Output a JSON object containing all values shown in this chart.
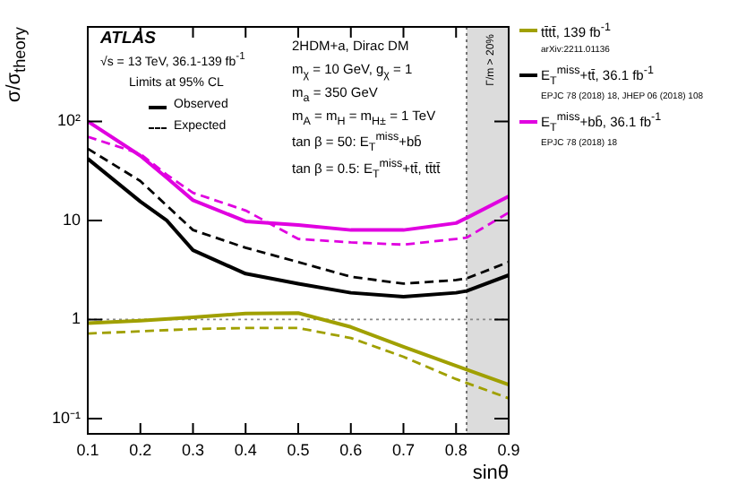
{
  "chart_data": {
    "type": "line",
    "xlabel": "sinθ",
    "ylabel": "σ/σ$_{theory}$",
    "log": "y",
    "grid": false,
    "legend": "right",
    "xlim": [
      0.1,
      0.9
    ],
    "xticks": [
      0.1,
      0.2,
      0.3,
      0.4,
      0.5,
      0.6,
      0.7,
      0.8,
      0.9
    ],
    "ylim": [
      0.07,
      900
    ],
    "yticks": [
      {
        "value": 0.1,
        "label": "10⁻¹"
      },
      1,
      10,
      {
        "value": 100,
        "label": "10²"
      }
    ],
    "series": [
      {
        "name": "tt̄tt̄, 139 fb$^{-1}$",
        "color": "#a0a000",
        "line_style": "solid",
        "x": [
          0.1,
          0.2,
          0.3,
          0.4,
          0.5,
          0.6,
          0.7,
          0.8,
          0.9
        ],
        "values": [
          0.92,
          0.97,
          1.05,
          1.15,
          1.16,
          0.84,
          0.53,
          0.34,
          0.22
        ]
      },
      {
        "color": "#a0a000",
        "line_style": "dashed",
        "x": [
          0.1,
          0.2,
          0.3,
          0.4,
          0.5,
          0.6,
          0.7,
          0.8,
          0.9
        ],
        "values": [
          0.72,
          0.76,
          0.8,
          0.82,
          0.82,
          0.65,
          0.42,
          0.25,
          0.16
        ]
      },
      {
        "name": "E$_{T}$$^{miss}$+tt̄, 36.1 fb$^{-1}$",
        "color": "#000000",
        "line_style": "solid",
        "x": [
          0.1,
          0.2,
          0.25,
          0.3,
          0.4,
          0.5,
          0.6,
          0.7,
          0.8,
          0.82,
          0.9
        ],
        "values": [
          42,
          15.5,
          10,
          5,
          2.9,
          2.3,
          1.86,
          1.7,
          1.86,
          1.94,
          2.8
        ]
      },
      {
        "color": "#000000",
        "line_style": "dashed",
        "x": [
          0.1,
          0.2,
          0.3,
          0.4,
          0.5,
          0.6,
          0.7,
          0.8,
          0.82,
          0.9
        ],
        "values": [
          53,
          25,
          8,
          5.3,
          3.8,
          2.7,
          2.3,
          2.5,
          2.6,
          3.8
        ]
      },
      {
        "name": "E$_{T}$$^{miss}$+bb̄, 36.1 fb$^{-1}$",
        "color": "#e000e0",
        "line_style": "solid",
        "x": [
          0.1,
          0.2,
          0.25,
          0.3,
          0.4,
          0.5,
          0.6,
          0.7,
          0.8,
          0.82,
          0.9
        ],
        "values": [
          100,
          45,
          27,
          16,
          9.8,
          9,
          8,
          8,
          9.4,
          10.6,
          17.5
        ]
      },
      {
        "color": "#e000e0",
        "line_style": "dashed",
        "x": [
          0.1,
          0.2,
          0.25,
          0.3,
          0.4,
          0.5,
          0.6,
          0.7,
          0.8,
          0.82,
          0.9
        ],
        "values": [
          70,
          47,
          29,
          19,
          12.6,
          6.5,
          6,
          5.7,
          6.5,
          6.7,
          12
        ]
      }
    ],
    "ref_lines": [
      {
        "axis": "y",
        "value": 1,
        "line_style": "dotted",
        "color": "#888888"
      },
      {
        "axis": "x",
        "value": 0.82,
        "line_style": "dotted",
        "color": "#555555"
      }
    ],
    "bands": [
      {
        "axis": "x",
        "from": 0.82,
        "to": 0.9,
        "label": "Γ/m > 20%",
        "color": "#dcdcdc"
      }
    ],
    "annotations": [
      "ATLAS",
      "√s = 13 TeV, 36.1-139 fb$^{-1}$",
      "Limits at 95% CL",
      "Observed",
      "Expected",
      "2HDM+a, Dirac DM",
      "m$_{χ}$ = 10 GeV, g$_{χ}$ = 1",
      "m$_{a}$ = 350 GeV",
      "m$_{A}$ = m$_{H}$ = m$_{H±}$ = 1 TeV",
      "tan β = 50: E$_{T}$$^{miss}$+bb̄",
      "tan β = 0.5: E$_{T}$$^{miss}$+tt̄, tt̄tt̄",
      "arXiv:2211.01136",
      "EPJC 78 (2018) 18, JHEP 06 (2018) 108",
      "EPJC 78 (2018) 18"
    ]
  }
}
